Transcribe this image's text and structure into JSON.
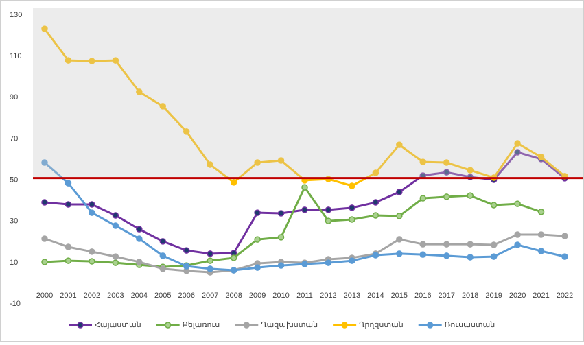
{
  "chart_data": {
    "type": "line",
    "categories": [
      "2000",
      "2001",
      "2002",
      "2003",
      "2004",
      "2005",
      "2006",
      "2007",
      "2008",
      "2009",
      "2010",
      "2011",
      "2012",
      "2013",
      "2014",
      "2015",
      "2016",
      "2017",
      "2018",
      "2019",
      "2020",
      "2021",
      "2022"
    ],
    "series": [
      {
        "name": "Հայաստան",
        "color": "#7030a0",
        "marker": "#1f3a6e",
        "values": [
          39.2,
          38.2,
          38.2,
          32.9,
          26.2,
          20.3,
          15.9,
          14.3,
          14.6,
          34.2,
          33.9,
          35.6,
          35.6,
          36.6,
          39.2,
          44.2,
          52.2,
          53.8,
          51.5,
          50.2,
          63.5,
          60.2,
          50.9
        ]
      },
      {
        "name": "Բելառուս",
        "color": "#70ad47",
        "marker": "#a9d18e",
        "values": [
          10.3,
          10.9,
          10.6,
          9.9,
          8.9,
          7.9,
          8.6,
          10.9,
          12.3,
          21.2,
          22.3,
          46.5,
          30.2,
          30.9,
          32.9,
          32.6,
          41.2,
          41.9,
          42.5,
          37.9,
          38.5,
          34.6,
          null
        ]
      },
      {
        "name": "Ղազախստան",
        "color": "#a5a5a5",
        "marker": "#a5a5a5",
        "values": [
          21.6,
          17.6,
          15.3,
          12.9,
          10.3,
          7.0,
          6.0,
          5.3,
          6.3,
          9.6,
          10.3,
          9.9,
          11.6,
          12.3,
          14.3,
          21.3,
          18.9,
          18.9,
          18.9,
          18.6,
          23.6,
          23.6,
          22.9
        ]
      },
      {
        "name": "Ղրղզստան",
        "color": "#ffc000",
        "marker": "#ffc000",
        "values": [
          123.3,
          108,
          107.7,
          108,
          92.8,
          85.8,
          73.5,
          57.5,
          48.9,
          58.5,
          59.5,
          49.9,
          50.5,
          47.2,
          53.5,
          67.1,
          58.8,
          58.5,
          54.8,
          51.2,
          67.8,
          61.2,
          51.9
        ]
      },
      {
        "name": "Ռուսաստան",
        "color": "#5b9bd5",
        "marker": "#5b9bd5",
        "values": [
          58.5,
          48.5,
          34.2,
          27.9,
          21.6,
          13.3,
          8.3,
          7.0,
          6.3,
          7.6,
          8.6,
          9.3,
          9.9,
          10.9,
          13.6,
          14.3,
          13.9,
          13.3,
          12.6,
          12.9,
          18.6,
          15.6,
          12.9
        ]
      }
    ],
    "threshold": 51,
    "threshold_color": "#c00000",
    "ylim": [
      -10,
      130
    ],
    "yticks": [
      -10,
      10,
      30,
      50,
      70,
      90,
      110,
      130
    ],
    "grid": false
  }
}
